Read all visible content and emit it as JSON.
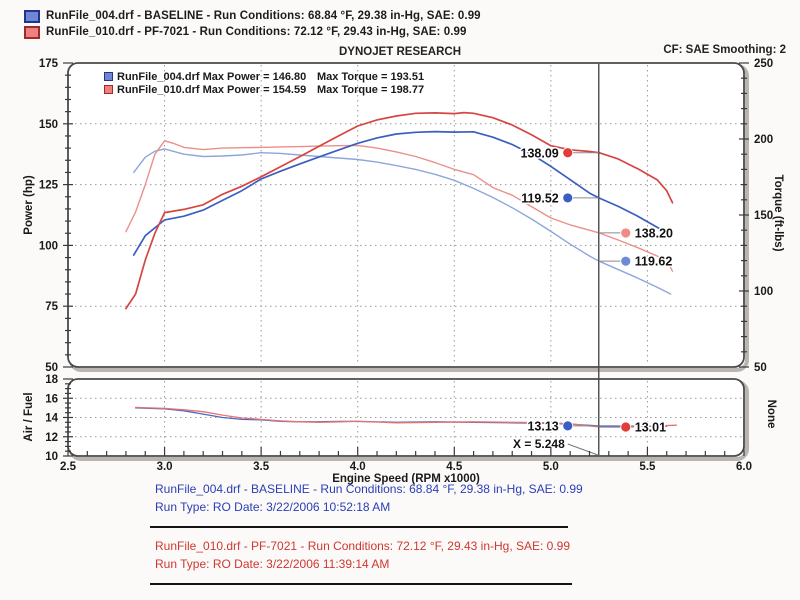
{
  "header": {
    "title": "DYNOJET RESEARCH",
    "correction": "CF: SAE  Smoothing: 2"
  },
  "top_legend": {
    "rows": [
      {
        "text": "RunFile_004.drf - BASELINE  -  Run Conditions: 68.84 °F, 29.38 in-Hg, SAE: 0.99",
        "swatch_fill": "#6f87d2",
        "swatch_border": "#20348f"
      },
      {
        "text": "RunFile_010.drf - PF-7021  -  Run Conditions: 72.12 °F, 29.43 in-Hg, SAE: 0.99",
        "swatch_fill": "#ee8080",
        "swatch_border": "#9e2b28"
      }
    ]
  },
  "inner_legend": {
    "rows": [
      {
        "col1": "RunFile_004.drf Max Power = 146.80",
        "col2": "Max Torque = 193.51",
        "swatch_fill": "#6f87d2",
        "swatch_border": "#20348f"
      },
      {
        "col1": "RunFile_010.drf Max Power = 154.59",
        "col2": "Max Torque = 198.77",
        "swatch_fill": "#ee8080",
        "swatch_border": "#9e2b28"
      }
    ]
  },
  "footer": {
    "blocks": [
      {
        "color_class": "footer-blue",
        "line1": "RunFile_004.drf - BASELINE  -  Run Conditions: 68.84 °F, 29.38 in-Hg, SAE: 0.99",
        "line2": "Run Type: RO  Date: 3/22/2006 10:52:18 AM"
      },
      {
        "color_class": "footer-red",
        "line1": "RunFile_010.drf - PF-7021  -  Run Conditions: 72.12 °F, 29.43 in-Hg, SAE: 0.99",
        "line2": "Run Type: RO  Date: 3/22/2006 11:39:14 AM"
      }
    ]
  },
  "chart_data": [
    {
      "type": "line",
      "title": "Power / Torque vs Engine Speed",
      "x_label": "Engine Speed (RPM x1000)",
      "x_range": [
        2.5,
        6.0
      ],
      "x_ticks": [
        2.5,
        3.0,
        3.5,
        4.0,
        4.5,
        5.0,
        5.5,
        6.0
      ],
      "x_gridlines": [
        3.0,
        3.5,
        4.0,
        4.5,
        5.0,
        5.5
      ],
      "left_axis": {
        "label": "Power (hp)",
        "range": [
          50,
          175
        ],
        "ticks": [
          50,
          75,
          100,
          125,
          150,
          175
        ],
        "minor_step": 5,
        "gridlines": [
          75,
          100,
          125,
          150
        ]
      },
      "right_axis": {
        "label": "Torque (ft-lbs)",
        "range": [
          50,
          250
        ],
        "ticks": [
          50,
          100,
          150,
          200,
          250
        ],
        "minor_step": 10
      },
      "cursor_x": 5.248,
      "series": [
        {
          "name": "torque-baseline",
          "axis": "right",
          "color": "#8ea6dc",
          "width": 1.4,
          "points": [
            [
              2.84,
              178
            ],
            [
              2.9,
              188
            ],
            [
              2.95,
              192
            ],
            [
              3.0,
              193.5
            ],
            [
              3.1,
              190
            ],
            [
              3.2,
              188.5
            ],
            [
              3.3,
              188.8
            ],
            [
              3.4,
              189.5
            ],
            [
              3.5,
              191
            ],
            [
              3.6,
              190.5
            ],
            [
              3.7,
              189.5
            ],
            [
              3.8,
              188.5
            ],
            [
              3.9,
              187.5
            ],
            [
              4.0,
              186.5
            ],
            [
              4.1,
              184.8
            ],
            [
              4.2,
              182.5
            ],
            [
              4.3,
              180
            ],
            [
              4.4,
              176.8
            ],
            [
              4.5,
              172.8
            ],
            [
              4.6,
              167.5
            ],
            [
              4.7,
              161.5
            ],
            [
              4.8,
              154.8
            ],
            [
              4.9,
              147.4
            ],
            [
              5.0,
              139.2
            ],
            [
              5.1,
              130.8
            ],
            [
              5.2,
              123
            ],
            [
              5.25,
              119.6
            ],
            [
              5.35,
              114
            ],
            [
              5.45,
              108.5
            ],
            [
              5.55,
              102.5
            ],
            [
              5.62,
              98
            ]
          ]
        },
        {
          "name": "torque-pf7021",
          "axis": "right",
          "color": "#eb8f8c",
          "width": 1.4,
          "points": [
            [
              2.8,
              139
            ],
            [
              2.85,
              152
            ],
            [
              2.9,
              170
            ],
            [
              2.95,
              190
            ],
            [
              3.0,
              198.8
            ],
            [
              3.05,
              197
            ],
            [
              3.1,
              194.5
            ],
            [
              3.2,
              193
            ],
            [
              3.3,
              194
            ],
            [
              3.4,
              194.3
            ],
            [
              3.5,
              194.5
            ],
            [
              3.6,
              194.8
            ],
            [
              3.7,
              195
            ],
            [
              3.8,
              195.3
            ],
            [
              3.9,
              195.6
            ],
            [
              4.0,
              195.8
            ],
            [
              4.1,
              194
            ],
            [
              4.2,
              191.5
            ],
            [
              4.3,
              188.5
            ],
            [
              4.4,
              184.5
            ],
            [
              4.5,
              180
            ],
            [
              4.6,
              176.5
            ],
            [
              4.7,
              168
            ],
            [
              4.8,
              163
            ],
            [
              4.9,
              155.5
            ],
            [
              5.0,
              148
            ],
            [
              5.1,
              143.5
            ],
            [
              5.2,
              140
            ],
            [
              5.25,
              138.2
            ],
            [
              5.35,
              133.5
            ],
            [
              5.45,
              128.5
            ],
            [
              5.55,
              123
            ],
            [
              5.6,
              120
            ],
            [
              5.63,
              113
            ]
          ]
        },
        {
          "name": "power-baseline",
          "axis": "left",
          "color": "#3b5fc0",
          "width": 1.7,
          "points": [
            [
              2.84,
              96
            ],
            [
              2.9,
              104
            ],
            [
              3.0,
              110.5
            ],
            [
              3.1,
              112
            ],
            [
              3.2,
              114.5
            ],
            [
              3.3,
              118.5
            ],
            [
              3.4,
              122.5
            ],
            [
              3.5,
              127.3
            ],
            [
              3.6,
              130.5
            ],
            [
              3.7,
              133.5
            ],
            [
              3.8,
              136.4
            ],
            [
              3.9,
              139.2
            ],
            [
              4.0,
              142
            ],
            [
              4.1,
              144.2
            ],
            [
              4.2,
              145.8
            ],
            [
              4.3,
              146.5
            ],
            [
              4.4,
              146.8
            ],
            [
              4.5,
              146.6
            ],
            [
              4.6,
              146.7
            ],
            [
              4.7,
              144.5
            ],
            [
              4.8,
              141.5
            ],
            [
              4.9,
              137.5
            ],
            [
              5.0,
              132.5
            ],
            [
              5.1,
              127
            ],
            [
              5.2,
              121.5
            ],
            [
              5.25,
              119.5
            ],
            [
              5.35,
              116
            ],
            [
              5.45,
              112
            ],
            [
              5.55,
              107.5
            ],
            [
              5.62,
              104.5
            ]
          ]
        },
        {
          "name": "power-pf7021",
          "axis": "left",
          "color": "#d64541",
          "width": 1.7,
          "points": [
            [
              2.8,
              74
            ],
            [
              2.85,
              80
            ],
            [
              2.9,
              94
            ],
            [
              2.95,
              105
            ],
            [
              3.0,
              113.5
            ],
            [
              3.1,
              114.8
            ],
            [
              3.2,
              116.7
            ],
            [
              3.3,
              121
            ],
            [
              3.4,
              124.3
            ],
            [
              3.5,
              128.2
            ],
            [
              3.6,
              132.3
            ],
            [
              3.7,
              136.5
            ],
            [
              3.8,
              140.8
            ],
            [
              3.9,
              145
            ],
            [
              4.0,
              149.1
            ],
            [
              4.1,
              151.6
            ],
            [
              4.2,
              153.2
            ],
            [
              4.3,
              154.3
            ],
            [
              4.4,
              154.5
            ],
            [
              4.5,
              154.2
            ],
            [
              4.55,
              154.6
            ],
            [
              4.6,
              154.3
            ],
            [
              4.7,
              152.5
            ],
            [
              4.8,
              149.5
            ],
            [
              4.9,
              145.5
            ],
            [
              5.0,
              141
            ],
            [
              5.1,
              139.3
            ],
            [
              5.2,
              138.6
            ],
            [
              5.25,
              138.1
            ],
            [
              5.35,
              135.5
            ],
            [
              5.45,
              131.5
            ],
            [
              5.55,
              127
            ],
            [
              5.6,
              122.5
            ],
            [
              5.63,
              117.5
            ]
          ]
        }
      ],
      "max_values": {
        "baseline_power": 146.8,
        "baseline_torque": 193.51,
        "pf7021_power": 154.59,
        "pf7021_torque": 198.77
      },
      "markers": [
        {
          "label": "138.09",
          "value": 138.09,
          "axis": "left",
          "side": "left",
          "color": "#e23b38"
        },
        {
          "label": "119.52",
          "value": 119.52,
          "axis": "left",
          "side": "left",
          "color": "#3b5fc0"
        },
        {
          "label": "138.20",
          "value": 138.2,
          "axis": "right",
          "side": "right",
          "color": "#ef8a87"
        },
        {
          "label": "119.62",
          "value": 119.62,
          "axis": "right",
          "side": "right",
          "color": "#6d8bd6"
        }
      ]
    },
    {
      "type": "line",
      "title": "Air/Fuel vs Engine Speed",
      "left_axis": {
        "label": "Air / Fuel",
        "range": [
          10,
          18
        ],
        "ticks": [
          10,
          12,
          14,
          16,
          18
        ],
        "minor_step": 0.5,
        "gridlines": [
          12,
          14,
          16
        ]
      },
      "right_axis_label": "None",
      "cursor_x": 5.248,
      "annotation": "X = 5.248",
      "series": [
        {
          "name": "af-baseline",
          "color": "#4a69c4",
          "width": 1.3,
          "points": [
            [
              2.85,
              15.0
            ],
            [
              3.0,
              14.9
            ],
            [
              3.1,
              14.7
            ],
            [
              3.2,
              14.35
            ],
            [
              3.3,
              14.0
            ],
            [
              3.4,
              13.8
            ],
            [
              3.5,
              13.75
            ],
            [
              3.6,
              13.6
            ],
            [
              3.7,
              13.55
            ],
            [
              3.8,
              13.55
            ],
            [
              3.9,
              13.6
            ],
            [
              4.0,
              13.6
            ],
            [
              4.2,
              13.5
            ],
            [
              4.4,
              13.55
            ],
            [
              4.6,
              13.5
            ],
            [
              4.8,
              13.45
            ],
            [
              5.0,
              13.4
            ],
            [
              5.1,
              13.3
            ],
            [
              5.25,
              13.13
            ],
            [
              5.4,
              13.1
            ],
            [
              5.6,
              13.1
            ]
          ]
        },
        {
          "name": "af-pf7021",
          "color": "#e57373",
          "width": 1.3,
          "points": [
            [
              2.85,
              15.05
            ],
            [
              3.0,
              14.95
            ],
            [
              3.1,
              14.8
            ],
            [
              3.2,
              14.6
            ],
            [
              3.3,
              14.25
            ],
            [
              3.4,
              13.95
            ],
            [
              3.5,
              13.8
            ],
            [
              3.6,
              13.65
            ],
            [
              3.7,
              13.55
            ],
            [
              3.8,
              13.5
            ],
            [
              3.9,
              13.55
            ],
            [
              4.0,
              13.6
            ],
            [
              4.2,
              13.45
            ],
            [
              4.4,
              13.5
            ],
            [
              4.6,
              13.55
            ],
            [
              4.8,
              13.5
            ],
            [
              5.0,
              13.45
            ],
            [
              5.1,
              13.35
            ],
            [
              5.25,
              13.01
            ],
            [
              5.4,
              13.0
            ],
            [
              5.5,
              13.1
            ],
            [
              5.65,
              13.2
            ]
          ]
        }
      ],
      "markers": [
        {
          "label": "13.13",
          "value": 13.13,
          "side": "left",
          "color": "#3b5fc0"
        },
        {
          "label": "13.01",
          "value": 13.01,
          "side": "right",
          "color": "#e23b38"
        }
      ]
    }
  ]
}
